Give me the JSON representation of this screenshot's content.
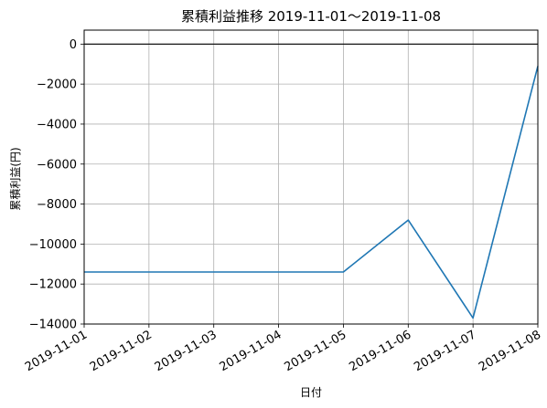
{
  "chart_data": {
    "type": "line",
    "title": "累積利益推移  2019-11-01～2019-11-08",
    "xlabel": "日付",
    "ylabel": "累積利益(円)",
    "categories": [
      "2019-11-01",
      "2019-11-02",
      "2019-11-03",
      "2019-11-04",
      "2019-11-05",
      "2019-11-06",
      "2019-11-07",
      "2019-11-08"
    ],
    "series": [
      {
        "values": [
          -11400,
          -11400,
          -11400,
          -11400,
          -11400,
          -8800,
          -13700,
          -1100
        ]
      }
    ],
    "yticks": [
      0,
      -2000,
      -4000,
      -6000,
      -8000,
      -10000,
      -12000,
      -14000
    ],
    "ytick_labels": [
      "0",
      "−2000",
      "−4000",
      "−6000",
      "−8000",
      "−10000",
      "−12000",
      "−14000"
    ],
    "ylim": [
      -14000,
      700
    ],
    "grid": true,
    "zero_line": true,
    "line_color": "#1f77b4"
  }
}
